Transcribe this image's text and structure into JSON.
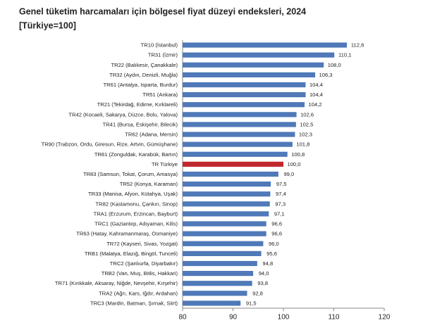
{
  "chart_data": {
    "type": "barh",
    "title": "Genel tüketim harcamaları için bölgesel fiyat düzeyi endeksleri, 2024",
    "subtitle": "[Türkiye=100]",
    "categories": [
      "TR10 (İstanbul)",
      "TR31 (İzmir)",
      "TR22 (Balıkesir, Çanakkale)",
      "TR32 (Aydın, Denizli, Muğla)",
      "TR61 (Antalya, Isparta, Burdur)",
      "TR51 (Ankara)",
      "TR21 (Tekirdağ, Edirne, Kırklareli)",
      "TR42 (Kocaeli, Sakarya, Düzce, Bolu, Yalova)",
      "TR41 (Bursa, Eskişehir, Bilecik)",
      "TR62 (Adana, Mersin)",
      "TR90 (Trabzon, Ordu, Giresun, Rize, Artvin, Gümüşhane)",
      "TR81 (Zonguldak, Karabük, Bartın)",
      "TR Türkiye",
      "TR83 (Samsun, Tokat, Çorum, Amasya)",
      "TR52 (Konya, Karaman)",
      "TR33 (Manisa, Afyon, Kütahya, Uşak)",
      "TR82 (Kastamonu, Çankırı, Sinop)",
      "TRA1 (Erzurum, Erzincan, Bayburt)",
      "TRC1 (Gaziantep, Adıyaman, Kilis)",
      "TR63 (Hatay, Kahramanmaraş, Osmaniye)",
      "TR72 (Kayseri, Sivas, Yozgat)",
      "TRB1 (Malatya, Elazığ, Bingöl, Tunceli)",
      "TRC2 (Şanlıurfa, Diyarbakır)",
      "TRB2 (Van, Muş, Bitlis, Hakkari)",
      "TR71 (Kırıkkale, Aksaray, Niğde, Nevşehir, Kırşehir)",
      "TRA2 (Ağrı, Kars, Iğdır, Ardahan)",
      "TRC3 (Mardin, Batman, Şırnak, Siirt)"
    ],
    "values": [
      112.6,
      110.1,
      108.0,
      106.3,
      104.4,
      104.4,
      104.2,
      102.6,
      102.5,
      102.3,
      101.8,
      100.8,
      100.0,
      99.0,
      97.5,
      97.4,
      97.3,
      97.1,
      96.6,
      96.6,
      96.0,
      95.6,
      94.8,
      94.0,
      93.8,
      92.8,
      91.5
    ],
    "value_labels": [
      "112,6",
      "110,1",
      "108,0",
      "106,3",
      "104,4",
      "104,4",
      "104,2",
      "102,6",
      "102,5",
      "102,3",
      "101,8",
      "100,8",
      "100,0",
      "99,0",
      "97,5",
      "97,4",
      "97,3",
      "97,1",
      "96,6",
      "96,6",
      "96,0",
      "95,6",
      "94,8",
      "94,0",
      "93,8",
      "92,8",
      "91,5"
    ],
    "colors": [
      "#4f79b8",
      "#4f79b8",
      "#4f79b8",
      "#4f79b8",
      "#4f79b8",
      "#4f79b8",
      "#4f79b8",
      "#4f79b8",
      "#4f79b8",
      "#4f79b8",
      "#4f79b8",
      "#4f79b8",
      "#c0282d",
      "#4f79b8",
      "#4f79b8",
      "#4f79b8",
      "#4f79b8",
      "#4f79b8",
      "#4f79b8",
      "#4f79b8",
      "#4f79b8",
      "#4f79b8",
      "#4f79b8",
      "#4f79b8",
      "#4f79b8",
      "#4f79b8",
      "#4f79b8"
    ],
    "xlim": [
      80,
      120
    ],
    "xticks": [
      80,
      90,
      100,
      110,
      120
    ],
    "grid": false
  }
}
